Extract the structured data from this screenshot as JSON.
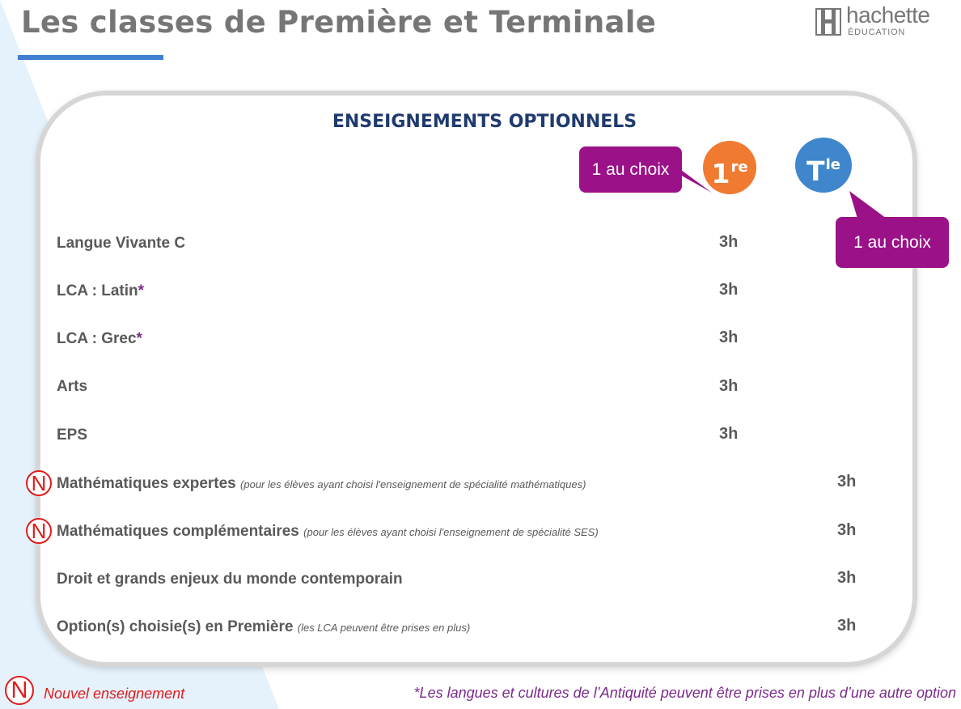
{
  "header": {
    "title": "Les classes de Première et Terminale",
    "logo_word": "hachette",
    "logo_sub": "ÉDUCATION"
  },
  "section": {
    "heading": "ENSEIGNEMENTS OPTIONNELS"
  },
  "columns": {
    "premiere": {
      "label_main": "1",
      "label_sup": "re",
      "callout": "1 au choix",
      "color": "#ef7a30"
    },
    "terminale": {
      "label_main": "T",
      "label_sup": "le",
      "callout": "1 au choix",
      "color": "#3f86cd"
    }
  },
  "rows": [
    {
      "label": "Langue Vivante C",
      "note": "",
      "asterisk": "",
      "is_new": false,
      "premiere": "3h",
      "terminale": ""
    },
    {
      "label": "LCA : Latin",
      "note": "",
      "asterisk": "*",
      "is_new": false,
      "premiere": "3h",
      "terminale": ""
    },
    {
      "label": "LCA : Grec",
      "note": "",
      "asterisk": "*",
      "is_new": false,
      "premiere": "3h",
      "terminale": ""
    },
    {
      "label": "Arts",
      "note": "",
      "asterisk": "",
      "is_new": false,
      "premiere": "3h",
      "terminale": ""
    },
    {
      "label": "EPS",
      "note": "",
      "asterisk": "",
      "is_new": false,
      "premiere": "3h",
      "terminale": ""
    },
    {
      "label": "Mathématiques expertes",
      "note": "(pour les élèves ayant choisi l'enseignement de spécialité mathématiques)",
      "asterisk": "",
      "is_new": true,
      "premiere": "",
      "terminale": "3h"
    },
    {
      "label": "Mathématiques complémentaires",
      "note": "(pour les élèves ayant choisi l'enseignement de spécialité SES)",
      "asterisk": "",
      "is_new": true,
      "premiere": "",
      "terminale": "3h"
    },
    {
      "label": "Droit et grands enjeux du monde contemporain",
      "note": "",
      "asterisk": "",
      "is_new": false,
      "premiere": "",
      "terminale": "3h"
    },
    {
      "label": "Option(s) choisie(s) en Première",
      "note": "(les LCA peuvent être prises en plus)",
      "asterisk": "",
      "is_new": false,
      "premiere": "",
      "terminale": "3h"
    }
  ],
  "legend": {
    "icon_letter": "N",
    "label": "Nouvel enseignement"
  },
  "footnote": "*Les langues et cultures de l’Antiquité peuvent être prises en plus d’une autre option"
}
